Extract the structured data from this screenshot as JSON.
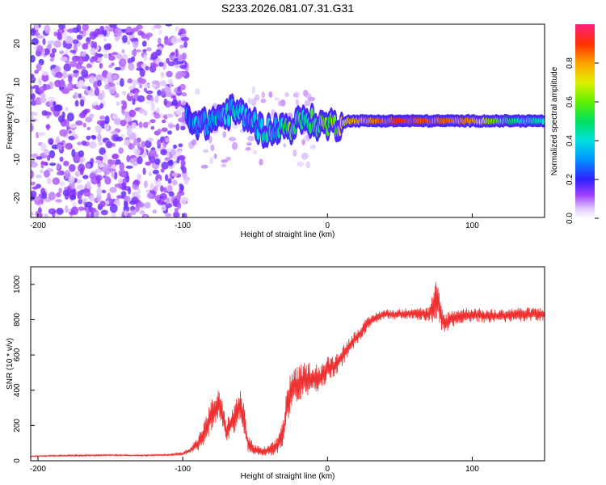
{
  "title": "S233.2026.081.07.31.G31",
  "chart_data": [
    {
      "type": "heatmap",
      "xlabel": "Height of straight line (km)",
      "ylabel": "Frequency (Hz)",
      "xlim": [
        -205,
        150
      ],
      "ylim": [
        -25,
        25
      ],
      "xticks": [
        -200,
        -100,
        0,
        100
      ],
      "yticks": [
        -20,
        -10,
        0,
        10,
        20
      ],
      "colorbar": {
        "label": "Normalized spectral amplitude",
        "range": [
          0,
          1
        ],
        "ticks": [
          0.0,
          0.2,
          0.4,
          0.6,
          0.8
        ]
      },
      "ridge": [
        {
          "x": -95,
          "f": 0.5,
          "a": 0.3
        },
        {
          "x": -85,
          "f": -1.0,
          "a": 0.35
        },
        {
          "x": -75,
          "f": 1.0,
          "a": 0.35
        },
        {
          "x": -65,
          "f": 2.5,
          "a": 0.4
        },
        {
          "x": -55,
          "f": 1.0,
          "a": 0.35
        },
        {
          "x": -45,
          "f": -2.5,
          "a": 0.35
        },
        {
          "x": -35,
          "f": -2.0,
          "a": 0.4
        },
        {
          "x": -25,
          "f": -1.5,
          "a": 0.55
        },
        {
          "x": -15,
          "f": 0.5,
          "a": 0.5
        },
        {
          "x": -5,
          "f": -1.0,
          "a": 0.55
        },
        {
          "x": 5,
          "f": -1.0,
          "a": 0.6
        },
        {
          "x": 15,
          "f": 0.0,
          "a": 0.75
        },
        {
          "x": 50,
          "f": 0.0,
          "a": 0.9
        },
        {
          "x": 100,
          "f": 0.0,
          "a": 0.8
        },
        {
          "x": 130,
          "f": 0.0,
          "a": 0.45
        },
        {
          "x": 150,
          "f": 0.0,
          "a": 0.4
        }
      ]
    },
    {
      "type": "line",
      "xlabel": "Height of straight line (km)",
      "ylabel": "SNR (10 * v/v)",
      "xlim": [
        -205,
        150
      ],
      "ylim": [
        0,
        1100
      ],
      "xticks": [
        -200,
        -100,
        0,
        100
      ],
      "yticks": [
        0,
        200,
        400,
        600,
        800,
        1000
      ],
      "color": "#ee3030",
      "series": [
        {
          "name": "SNR",
          "x": [
            -205,
            -190,
            -170,
            -150,
            -130,
            -110,
            -100,
            -95,
            -90,
            -85,
            -80,
            -75,
            -72,
            -70,
            -65,
            -60,
            -57,
            -55,
            -50,
            -45,
            -40,
            -35,
            -30,
            -28,
            -25,
            -20,
            -15,
            -10,
            -5,
            0,
            5,
            10,
            15,
            20,
            25,
            30,
            35,
            40,
            50,
            60,
            70,
            75,
            77,
            80,
            90,
            100,
            110,
            120,
            130,
            140,
            150
          ],
          "y": [
            25,
            28,
            30,
            32,
            30,
            33,
            40,
            60,
            90,
            160,
            260,
            330,
            250,
            170,
            230,
            320,
            200,
            100,
            60,
            50,
            60,
            80,
            180,
            320,
            400,
            430,
            460,
            470,
            470,
            520,
            540,
            590,
            650,
            700,
            750,
            790,
            820,
            830,
            830,
            840,
            830,
            900,
            870,
            780,
            820,
            830,
            820,
            820,
            830,
            830,
            830
          ],
          "noise": [
            3,
            4,
            5,
            5,
            4,
            5,
            10,
            20,
            40,
            70,
            90,
            80,
            70,
            60,
            80,
            100,
            80,
            50,
            30,
            25,
            30,
            50,
            90,
            110,
            110,
            110,
            100,
            90,
            80,
            70,
            60,
            60,
            50,
            45,
            40,
            35,
            30,
            30,
            30,
            35,
            40,
            120,
            100,
            60,
            45,
            40,
            40,
            40,
            40,
            40,
            40
          ]
        }
      ]
    }
  ]
}
